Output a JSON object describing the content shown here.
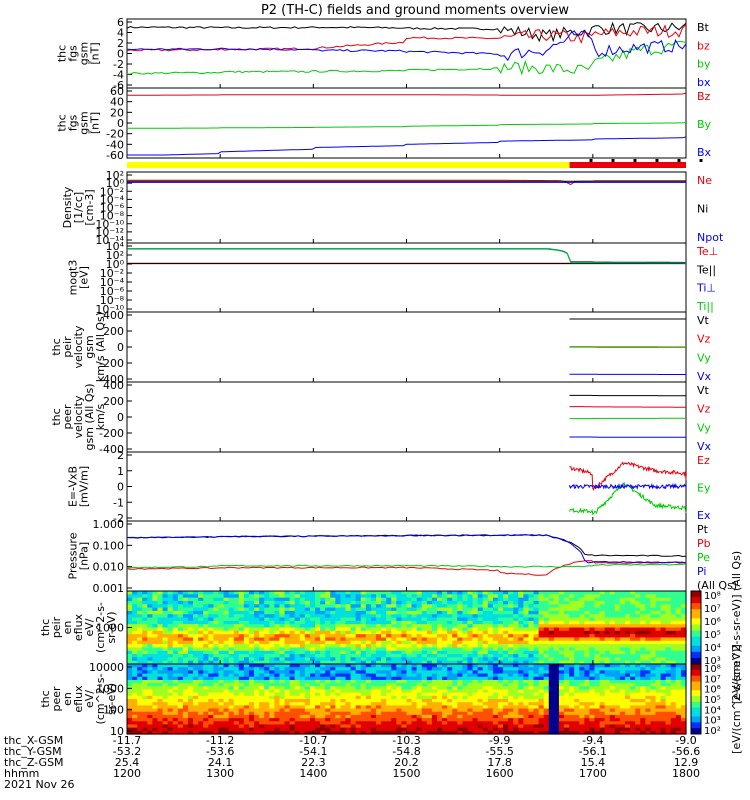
{
  "title": "P2 (TH-C) fields and ground moments overview",
  "colors": {
    "black": "#000000",
    "red": "#e8000b",
    "green": "#00cc00",
    "blue": "#0000ff",
    "yellow": "#ffff00"
  },
  "panels": [
    {
      "ylabel": [
        "thc",
        "fgs",
        "gsm",
        "[nT]"
      ],
      "ticks": [
        "6",
        "4",
        "2",
        "0",
        "-2",
        "-4",
        "-6"
      ],
      "legend": [
        {
          "t": "Bt",
          "c": "black"
        },
        {
          "t": "bz",
          "c": "red"
        },
        {
          "t": "by",
          "c": "green"
        },
        {
          "t": "bx",
          "c": "blue"
        }
      ]
    },
    {
      "ylabel": [
        "thc",
        "fgs",
        "gsm",
        "[nT]"
      ],
      "ticks": [
        "60",
        "40",
        "20",
        "0",
        "-20",
        "-40",
        "-60"
      ],
      "legend": [
        {
          "t": "Bz",
          "c": "red"
        },
        {
          "t": "By",
          "c": "green"
        },
        {
          "t": "Bx",
          "c": "blue"
        }
      ]
    },
    {
      "ylabel": [
        "Density",
        "[1/cc]",
        "[cm-3]"
      ],
      "ticks": [
        "10²",
        "10⁰",
        "10⁻²",
        "10⁻⁴",
        "10⁻⁶",
        "10⁻⁸",
        "10⁻¹⁰",
        "10⁻¹²",
        "10⁻¹⁴"
      ],
      "legend": [
        {
          "t": "Ne",
          "c": "red"
        },
        {
          "t": "Ni",
          "c": "black"
        },
        {
          "t": "Npot",
          "c": "blue"
        }
      ]
    },
    {
      "ylabel": [
        "moqt3",
        "[eV]"
      ],
      "ticks": [
        "10⁴",
        "10²",
        "10⁰",
        "10⁻²",
        "10⁻⁴",
        "10⁻⁶",
        "10⁻⁸",
        "10⁻¹⁰"
      ],
      "legend": [
        {
          "t": "Te⊥",
          "c": "red"
        },
        {
          "t": "Te||",
          "c": "black"
        },
        {
          "t": "Ti⊥",
          "c": "blue"
        },
        {
          "t": "Ti||",
          "c": "green"
        }
      ]
    },
    {
      "ylabel": [
        "thc",
        "peir",
        "velocity",
        "gsm",
        "km/s (All Qs)"
      ],
      "ticks": [
        "400",
        "200",
        "0",
        "-200",
        "-400"
      ],
      "legend": [
        {
          "t": "Vt",
          "c": "black"
        },
        {
          "t": "Vz",
          "c": "red"
        },
        {
          "t": "Vy",
          "c": "green"
        },
        {
          "t": "Vx",
          "c": "blue"
        }
      ]
    },
    {
      "ylabel": [
        "thc",
        "peer",
        "velocity",
        "gsm (All Qs)",
        "km/s"
      ],
      "ticks": [
        "400",
        "200",
        "0",
        "-200",
        "-400"
      ],
      "legend": [
        {
          "t": "Vt",
          "c": "black"
        },
        {
          "t": "Vz",
          "c": "red"
        },
        {
          "t": "Vy",
          "c": "green"
        },
        {
          "t": "Vx",
          "c": "blue"
        }
      ]
    },
    {
      "ylabel": [
        "E=-VxB",
        "[mV/m]"
      ],
      "ticks": [
        "2",
        "1",
        "0",
        "-1",
        "-2"
      ],
      "legend": [
        {
          "t": "Ez",
          "c": "red"
        },
        {
          "t": "Ey",
          "c": "green"
        },
        {
          "t": "Ex",
          "c": "blue"
        }
      ]
    },
    {
      "ylabel": [
        "Pressure",
        "[nPa]"
      ],
      "ticks": [
        "1.000",
        "0.100",
        "0.010",
        "0.001"
      ],
      "legend": [
        {
          "t": "Pt",
          "c": "black"
        },
        {
          "t": "Pb",
          "c": "red"
        },
        {
          "t": "Pe",
          "c": "green"
        },
        {
          "t": "Pi",
          "c": "blue"
        },
        {
          "t": "(All Qs)",
          "c": "black"
        }
      ]
    },
    {
      "ylabel": [
        "thc",
        "peir",
        "en",
        "eflux",
        "eV/",
        "(cm^2-s-",
        "sr-eV)"
      ],
      "ticks": [
        "1000"
      ],
      "cbar_ticks": [
        "10⁸",
        "10⁷",
        "10⁶",
        "10⁵",
        "10⁴",
        "10³"
      ],
      "cbar_label": "[eV/(cm^2-s-sr-eV)] (All Qs)"
    },
    {
      "ylabel": [
        "thc",
        "peer",
        "en",
        "eflux",
        "eV/",
        "(cm^2-s-",
        "sr-eV)"
      ],
      "ticks": [
        "10000",
        "1000",
        "100",
        "10"
      ],
      "cbar_ticks": [
        "10⁸",
        "10⁷",
        "10⁶",
        "10⁵",
        "10⁴",
        "10³",
        "10²"
      ],
      "cbar_label": "[eV/(cm^2-s-sr-eV)]"
    }
  ],
  "xaxis": {
    "row_labels": [
      "thc_X-GSM",
      "thc_Y-GSM",
      "thc_Z-GSM",
      "hhmm",
      "2021 Nov 26"
    ],
    "columns": [
      {
        "x": "-11.7",
        "y": "-53.2",
        "z": "25.4",
        "t": "1200"
      },
      {
        "x": "-11.2",
        "y": "-53.6",
        "z": "24.1",
        "t": "1300"
      },
      {
        "x": "-10.7",
        "y": "-54.1",
        "z": "22.3",
        "t": "1400"
      },
      {
        "x": "-10.3",
        "y": "-54.8",
        "z": "20.2",
        "t": "1500"
      },
      {
        "x": "-9.9",
        "y": "-55.5",
        "z": "17.8",
        "t": "1600"
      },
      {
        "x": "-9.4",
        "y": "-56.1",
        "z": "15.4",
        "t": "1700"
      },
      {
        "x": "-9.0",
        "y": "-56.6",
        "z": "12.9",
        "t": "1800"
      }
    ]
  },
  "chart_data": {
    "type": "line",
    "title": "P2 (TH-C) fields and ground moments overview",
    "x_unit": "hhmm",
    "x_ticks": [
      "1200",
      "1300",
      "1400",
      "1500",
      "1600",
      "1700",
      "1800"
    ],
    "xlim": [
      "1200",
      "1800"
    ],
    "date": "2021 Nov 26",
    "panels": [
      {
        "name": "thc fgs gsm [nT]",
        "ylim": [
          -6,
          6
        ],
        "series": [
          {
            "name": "Bt",
            "color": "black",
            "x": [
              1200,
              1300,
              1400,
              1500,
              1600,
              1630,
              1650,
              1700,
              1730,
              1800
            ],
            "y": [
              5.0,
              4.9,
              5.0,
              4.8,
              4.6,
              3.4,
              4.2,
              4.8,
              4.7,
              5.2
            ]
          },
          {
            "name": "bz",
            "color": "red",
            "x": [
              1200,
              1300,
              1400,
              1500,
              1600,
              1630,
              1650,
              1700,
              1730,
              1800
            ],
            "y": [
              0.6,
              0.8,
              1.0,
              3.0,
              2.8,
              3.5,
              3.0,
              3.6,
              4.2,
              4.6
            ]
          },
          {
            "name": "by",
            "color": "green",
            "x": [
              1200,
              1300,
              1400,
              1500,
              1600,
              1630,
              1650,
              1700,
              1730,
              1800
            ],
            "y": [
              -3.8,
              -3.5,
              -3.4,
              -3.2,
              -2.6,
              -2.8,
              -3.2,
              -2.0,
              0.6,
              2.8
            ]
          },
          {
            "name": "bx",
            "color": "blue",
            "x": [
              1200,
              1300,
              1400,
              1500,
              1600,
              1630,
              1650,
              1700,
              1730,
              1800
            ],
            "y": [
              0.8,
              0.9,
              0.6,
              0.4,
              -0.4,
              0.8,
              3.5,
              0.4,
              1.2,
              1.8
            ]
          }
        ]
      },
      {
        "name": "thc fgs gsm [nT]",
        "ylim": [
          -60,
          60
        ],
        "series": [
          {
            "name": "Bz",
            "color": "red",
            "x": [
              1200,
              1300,
              1400,
              1500,
              1600,
              1700,
              1800
            ],
            "y": [
              52,
              53,
              53,
              53,
              52,
              52,
              56
            ]
          },
          {
            "name": "By",
            "color": "green",
            "x": [
              1200,
              1300,
              1400,
              1500,
              1600,
              1700,
              1800
            ],
            "y": [
              -10,
              -9,
              -8,
              -6,
              -3,
              -1,
              1
            ]
          },
          {
            "name": "Bx",
            "color": "blue",
            "x": [
              1200,
              1300,
              1400,
              1500,
              1600,
              1700,
              1800
            ],
            "y": [
              -62,
              -54,
              -46,
              -40,
              -34,
              -30,
              -26
            ]
          }
        ]
      },
      {
        "name": "Density [1/cc] [cm-3]",
        "yscale": "log",
        "ylim": [
          1e-14,
          100.0
        ],
        "series": [
          {
            "name": "Ne",
            "color": "red",
            "x": [
              1200,
              1300,
              1400,
              1500,
              1600,
              1640,
              1645,
              1650,
              1700,
              1800
            ],
            "y": [
              5,
              5,
              5,
              5,
              5,
              4,
              0.0001,
              3,
              4,
              4
            ]
          },
          {
            "name": "Ni",
            "color": "black",
            "x": [
              1200,
              1800
            ],
            "y": [
              3,
              3
            ]
          },
          {
            "name": "Npot",
            "color": "blue",
            "x": [
              1200,
              1800
            ],
            "y": [
              1.5,
              1.5
            ]
          }
        ]
      },
      {
        "name": "moqt3 [eV]",
        "yscale": "log",
        "ylim": [
          1e-10,
          10000.0
        ],
        "series": [
          {
            "name": "Te⊥",
            "color": "red",
            "x": [
              1200,
              1800
            ],
            "y": [
              1.5,
              1.5
            ]
          },
          {
            "name": "Te||",
            "color": "black",
            "x": [
              1200,
              1800
            ],
            "y": [
              1.2,
              1.2
            ]
          },
          {
            "name": "Ti⊥",
            "color": "blue",
            "x": [
              1200,
              1630,
              1645,
              1800
            ],
            "y": [
              2500,
              2500,
              3,
              2
            ]
          },
          {
            "name": "Ti||",
            "color": "green",
            "x": [
              1200,
              1630,
              1645,
              1800
            ],
            "y": [
              2000,
              2000,
              2,
              1.5
            ]
          }
        ]
      },
      {
        "name": "thc peir velocity gsm km/s (All Qs)",
        "ylim": [
          -400,
          400
        ],
        "series": [
          {
            "name": "Vt",
            "color": "black",
            "x": [
              1645,
              1800
            ],
            "y": [
              350,
              350
            ]
          },
          {
            "name": "Vz",
            "color": "red",
            "x": [
              1645,
              1800
            ],
            "y": [
              0,
              -5
            ]
          },
          {
            "name": "Vy",
            "color": "green",
            "x": [
              1645,
              1800
            ],
            "y": [
              5,
              0
            ]
          },
          {
            "name": "Vx",
            "color": "blue",
            "x": [
              1645,
              1800
            ],
            "y": [
              -340,
              -345
            ]
          }
        ]
      },
      {
        "name": "thc peer velocity gsm (All Qs) km/s",
        "ylim": [
          -400,
          400
        ],
        "series": [
          {
            "name": "Vt",
            "color": "black",
            "x": [
              1645,
              1800
            ],
            "y": [
              270,
              265
            ]
          },
          {
            "name": "Vz",
            "color": "red",
            "x": [
              1645,
              1800
            ],
            "y": [
              130,
              120
            ]
          },
          {
            "name": "Vy",
            "color": "green",
            "x": [
              1645,
              1800
            ],
            "y": [
              -20,
              -15
            ]
          },
          {
            "name": "Vx",
            "color": "blue",
            "x": [
              1645,
              1800
            ],
            "y": [
              -250,
              -255
            ]
          }
        ]
      },
      {
        "name": "E=-VxB [mV/m]",
        "ylim": [
          -2,
          2
        ],
        "series": [
          {
            "name": "Ez",
            "color": "red",
            "x": [
              1645,
              1700,
              1720,
              1740,
              1800
            ],
            "y": [
              1.2,
              -0.2,
              1.5,
              1.0,
              0.5
            ]
          },
          {
            "name": "Ey",
            "color": "green",
            "x": [
              1645,
              1700,
              1720,
              1740,
              1800
            ],
            "y": [
              -1.5,
              -1.8,
              0.2,
              -1.2,
              -1.7
            ]
          },
          {
            "name": "Ex",
            "color": "blue",
            "x": [
              1645,
              1800
            ],
            "y": [
              0,
              0
            ]
          }
        ]
      },
      {
        "name": "Pressure [nPa]",
        "yscale": "log",
        "ylim": [
          0.001,
          1
        ],
        "series": [
          {
            "name": "Pt",
            "color": "black",
            "x": [
              1200,
              1300,
              1400,
              1500,
              1600,
              1630,
              1655,
              1700,
              1800
            ],
            "y": [
              0.23,
              0.26,
              0.27,
              0.29,
              0.3,
              0.3,
              0.035,
              0.034,
              0.03
            ]
          },
          {
            "name": "Pb",
            "color": "red",
            "x": [
              1200,
              1300,
              1400,
              1500,
              1600,
              1630,
              1655,
              1700,
              1800
            ],
            "y": [
              0.008,
              0.009,
              0.009,
              0.009,
              0.005,
              0.004,
              0.02,
              0.015,
              0.016
            ]
          },
          {
            "name": "Pe",
            "color": "green",
            "x": [
              1200,
              1300,
              1400,
              1500,
              1600,
              1640,
              1700,
              1800
            ],
            "y": [
              0.009,
              0.011,
              0.011,
              0.011,
              0.01,
              0.01,
              0.012,
              0.013
            ]
          },
          {
            "name": "Pi",
            "color": "blue",
            "x": [
              1200,
              1300,
              1400,
              1500,
              1600,
              1630,
              1655,
              1700,
              1800
            ],
            "y": [
              0.23,
              0.26,
              0.27,
              0.29,
              0.3,
              0.29,
              0.016,
              0.017,
              0.015
            ]
          }
        ]
      },
      {
        "name": "thc peir en eflux",
        "type": "heatmap",
        "ytick": "1000",
        "cbar_range": [
          "10³",
          "10⁸"
        ]
      },
      {
        "name": "thc peer en eflux",
        "type": "heatmap",
        "yticks": [
          "10",
          "100",
          "1000",
          "10000"
        ],
        "cbar_range": [
          "10²",
          "10⁸"
        ]
      }
    ]
  }
}
